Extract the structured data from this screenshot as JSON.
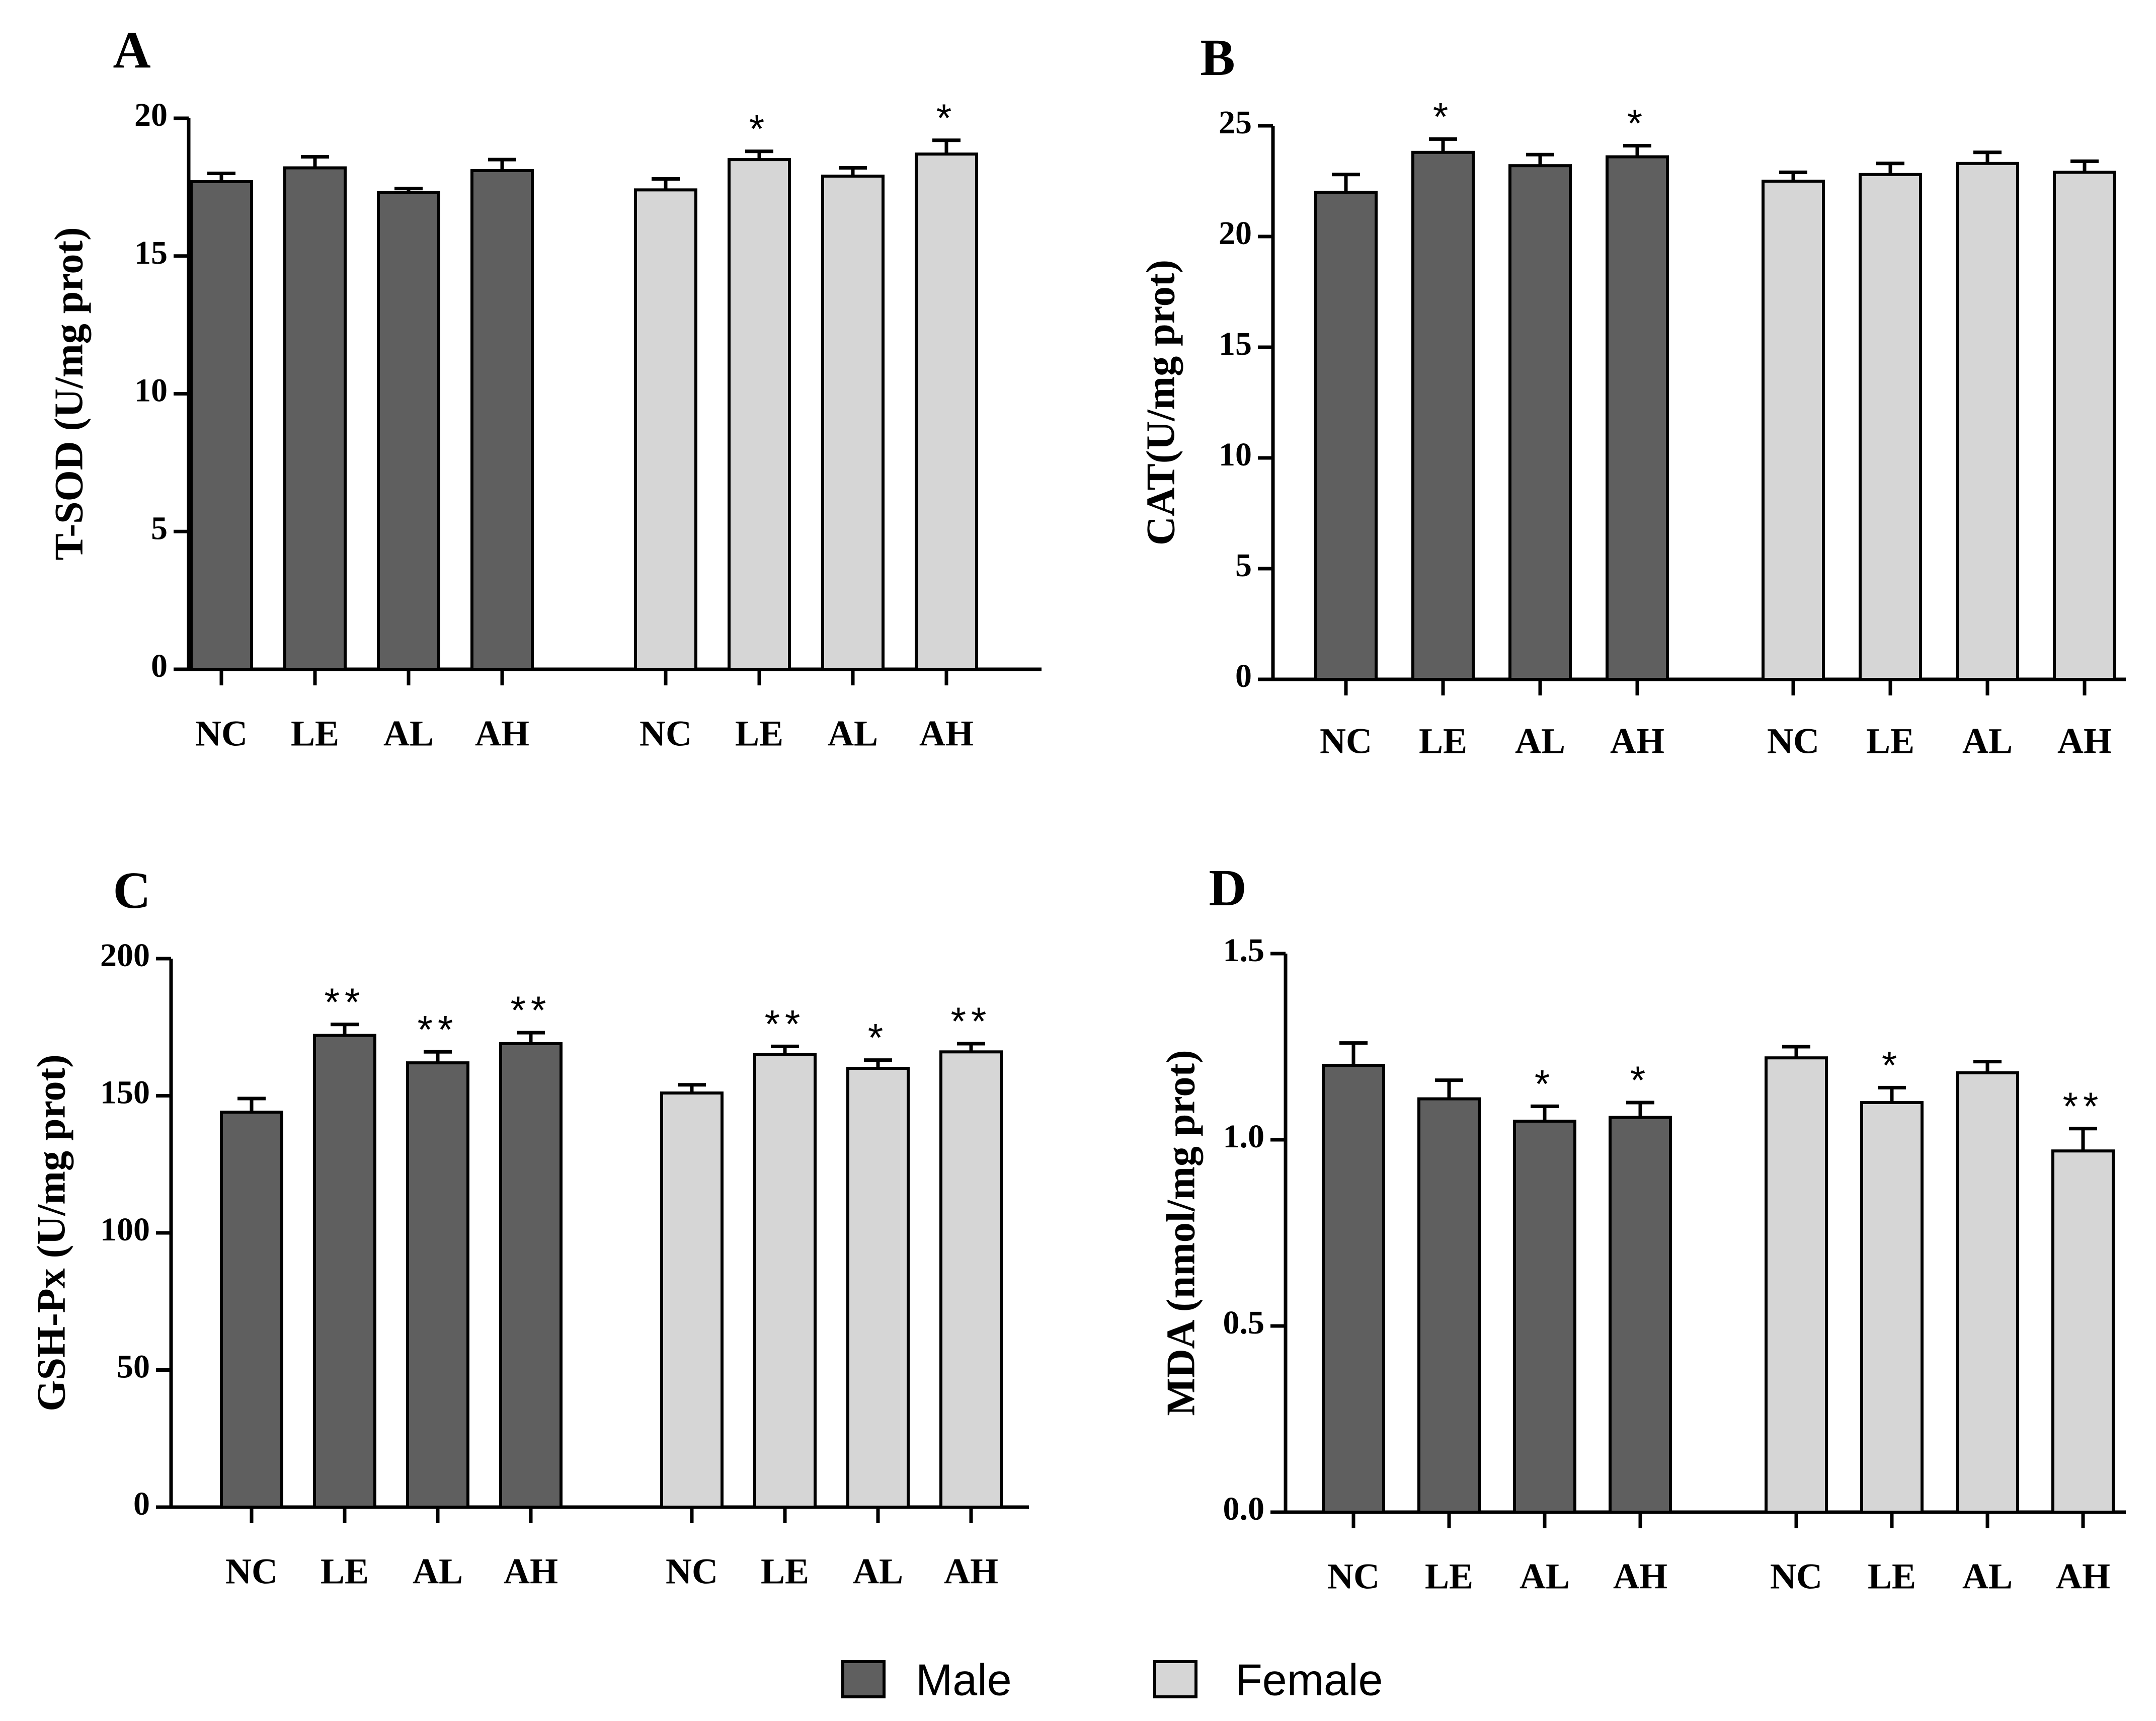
{
  "colors": {
    "male": "#5f5f5f",
    "female": "#d6d6d6",
    "stroke": "#000000"
  },
  "legend": {
    "items": [
      {
        "key": "male",
        "label": "Male"
      },
      {
        "key": "female",
        "label": "Female"
      }
    ]
  },
  "chart_data": [
    {
      "type": "bar",
      "panel": "A",
      "ylabel": "T-SOD (U/mg prot)",
      "ylim": [
        0,
        20
      ],
      "yticks": [
        0,
        5,
        10,
        15,
        20
      ],
      "tick_decimals": 0,
      "categories": [
        "NC",
        "LE",
        "AL",
        "AH"
      ],
      "series": [
        {
          "name": "Male",
          "values": [
            17.7,
            18.2,
            17.3,
            18.1
          ],
          "errors": [
            0.3,
            0.4,
            0.15,
            0.4
          ],
          "sig": [
            "",
            "",
            "",
            ""
          ]
        },
        {
          "name": "Female",
          "values": [
            17.4,
            18.5,
            17.9,
            18.7
          ],
          "errors": [
            0.4,
            0.3,
            0.3,
            0.5
          ],
          "sig": [
            "",
            "*",
            "",
            "*"
          ]
        }
      ]
    },
    {
      "type": "bar",
      "panel": "B",
      "ylabel": "CAT(U/mg prot)",
      "ylim": [
        0,
        25
      ],
      "yticks": [
        0,
        5,
        10,
        15,
        20,
        25
      ],
      "tick_decimals": 0,
      "categories": [
        "NC",
        "LE",
        "AL",
        "AH"
      ],
      "series": [
        {
          "name": "Male",
          "values": [
            22.0,
            23.8,
            23.2,
            23.6
          ],
          "errors": [
            0.8,
            0.6,
            0.5,
            0.5
          ],
          "sig": [
            "",
            "*",
            "",
            "*"
          ]
        },
        {
          "name": "Female",
          "values": [
            22.5,
            22.8,
            23.3,
            22.9
          ],
          "errors": [
            0.4,
            0.5,
            0.5,
            0.5
          ],
          "sig": [
            "",
            "",
            "",
            ""
          ]
        }
      ]
    },
    {
      "type": "bar",
      "panel": "C",
      "ylabel": "GSH-Px (U/mg prot)",
      "ylim": [
        0,
        200
      ],
      "yticks": [
        0,
        50,
        100,
        150,
        200
      ],
      "tick_decimals": 0,
      "categories": [
        "NC",
        "LE",
        "AL",
        "AH"
      ],
      "series": [
        {
          "name": "Male",
          "values": [
            144,
            172,
            162,
            169
          ],
          "errors": [
            5,
            4,
            4,
            4
          ],
          "sig": [
            "",
            "**",
            "**",
            "**"
          ]
        },
        {
          "name": "Female",
          "values": [
            151,
            165,
            160,
            166
          ],
          "errors": [
            3,
            3,
            3,
            3
          ],
          "sig": [
            "",
            "**",
            "*",
            "**"
          ]
        }
      ]
    },
    {
      "type": "bar",
      "panel": "D",
      "ylabel": "MDA (nmol/mg prot)",
      "ylim": [
        0,
        1.5
      ],
      "yticks": [
        0,
        0.5,
        1.0,
        1.5
      ],
      "tick_decimals": 1,
      "categories": [
        "NC",
        "LE",
        "AL",
        "AH"
      ],
      "series": [
        {
          "name": "Male",
          "values": [
            1.2,
            1.11,
            1.05,
            1.06
          ],
          "errors": [
            0.06,
            0.05,
            0.04,
            0.04
          ],
          "sig": [
            "",
            "",
            "*",
            "*"
          ]
        },
        {
          "name": "Female",
          "values": [
            1.22,
            1.1,
            1.18,
            0.97
          ],
          "errors": [
            0.03,
            0.04,
            0.03,
            0.06
          ],
          "sig": [
            "",
            "*",
            "",
            "**"
          ]
        }
      ]
    }
  ]
}
